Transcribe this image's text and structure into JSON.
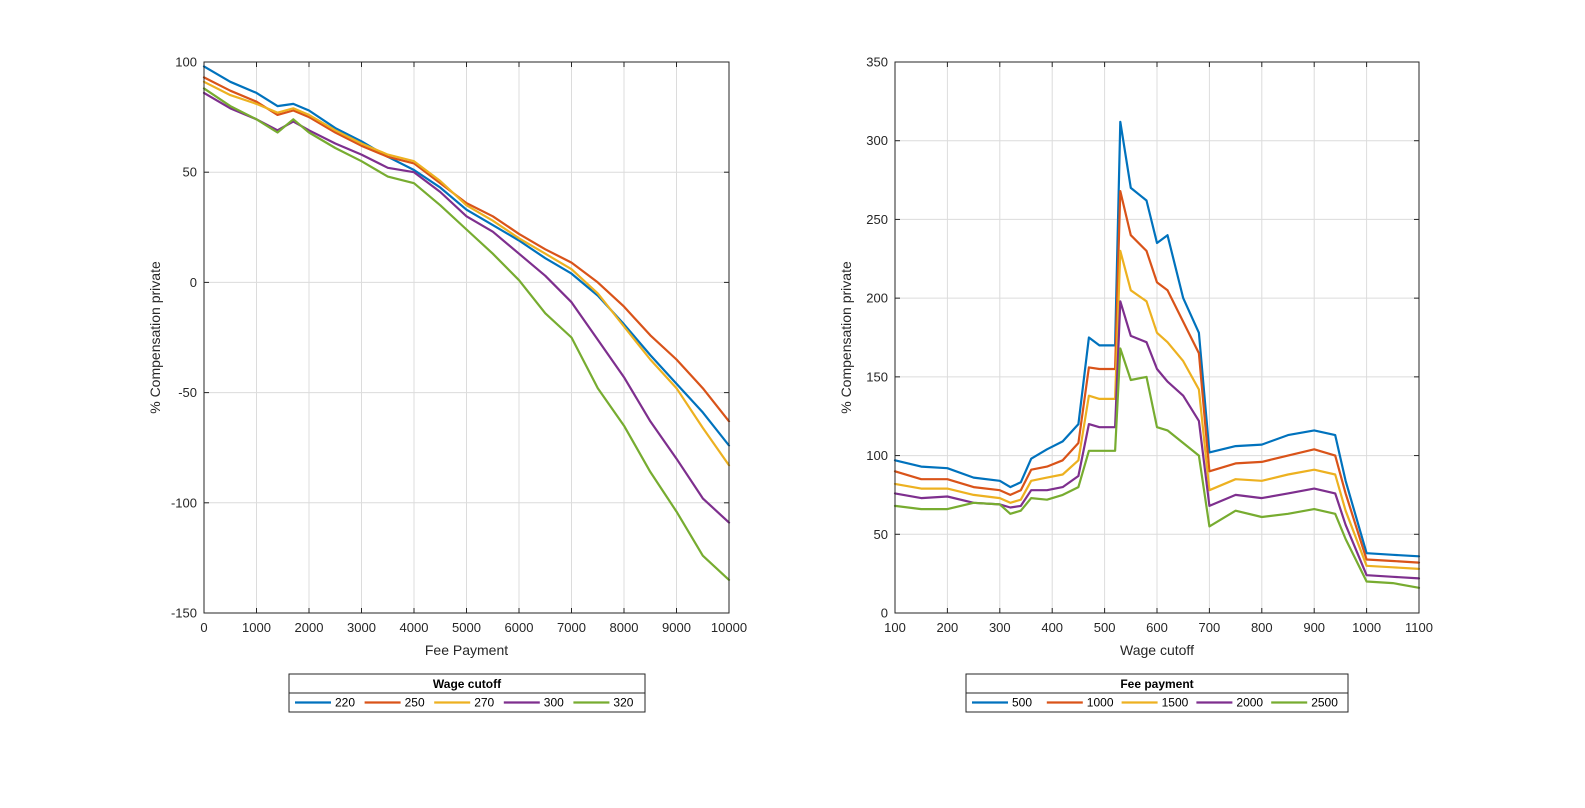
{
  "chart_data": [
    {
      "type": "line",
      "xlabel": "Fee Payment",
      "ylabel": "% Compensation private",
      "xlim": [
        0,
        10000
      ],
      "ylim": [
        -150,
        100
      ],
      "xticks": [
        0,
        1000,
        2000,
        3000,
        4000,
        5000,
        6000,
        7000,
        8000,
        9000,
        10000
      ],
      "yticks": [
        -150,
        -100,
        -50,
        0,
        50,
        100
      ],
      "grid": true,
      "legend": {
        "title": "Wage cutoff",
        "placement": "below",
        "orientation": "horizontal"
      },
      "series": [
        {
          "name": "220",
          "color": "#0072BD",
          "x": [
            0,
            500,
            1000,
            1400,
            1700,
            2000,
            2500,
            3000,
            3500,
            4000,
            4500,
            5000,
            5500,
            6000,
            6500,
            7000,
            7500,
            8000,
            8500,
            9000,
            9500,
            10000
          ],
          "y": [
            98,
            91,
            86,
            80,
            81,
            78,
            70,
            64,
            57,
            51,
            43,
            33,
            26,
            19,
            11,
            4,
            -6,
            -19,
            -33,
            -46,
            -59,
            -74
          ]
        },
        {
          "name": "250",
          "color": "#D95319",
          "x": [
            0,
            500,
            1000,
            1400,
            1700,
            2000,
            2500,
            3000,
            3500,
            4000,
            4500,
            5000,
            5500,
            6000,
            6500,
            7000,
            7500,
            8000,
            8500,
            9000,
            9500,
            10000
          ],
          "y": [
            93,
            87,
            82,
            76,
            78,
            75,
            68,
            62,
            57,
            54,
            45,
            36,
            30,
            22,
            15,
            9,
            0,
            -11,
            -24,
            -35,
            -48,
            -63
          ]
        },
        {
          "name": "270",
          "color": "#EDB120",
          "x": [
            0,
            500,
            1000,
            1400,
            1700,
            2000,
            2500,
            3000,
            3500,
            4000,
            4500,
            5000,
            5500,
            6000,
            6500,
            7000,
            7500,
            8000,
            8500,
            9000,
            9500,
            10000
          ],
          "y": [
            91,
            85,
            81,
            77,
            79,
            76,
            69,
            63,
            58,
            55,
            46,
            35,
            28,
            20,
            13,
            6,
            -5,
            -20,
            -35,
            -48,
            -66,
            -83
          ]
        },
        {
          "name": "300",
          "color": "#7E2F8E",
          "x": [
            0,
            500,
            1000,
            1400,
            1700,
            2000,
            2500,
            3000,
            3500,
            4000,
            4500,
            5000,
            5500,
            6000,
            6500,
            7000,
            7500,
            8000,
            8500,
            9000,
            9500,
            10000
          ],
          "y": [
            86,
            79,
            74,
            69,
            73,
            69,
            63,
            58,
            52,
            50,
            41,
            30,
            23,
            13,
            3,
            -9,
            -26,
            -43,
            -63,
            -80,
            -98,
            -109
          ]
        },
        {
          "name": "320",
          "color": "#77AC30",
          "x": [
            0,
            500,
            1000,
            1400,
            1700,
            2000,
            2500,
            3000,
            3500,
            4000,
            4500,
            5000,
            5500,
            6000,
            6500,
            7000,
            7500,
            8000,
            8500,
            9000,
            9500,
            10000
          ],
          "y": [
            88,
            80,
            74,
            68,
            74,
            68,
            61,
            55,
            48,
            45,
            35,
            24,
            13,
            1,
            -14,
            -25,
            -48,
            -65,
            -86,
            -104,
            -124,
            -135
          ]
        }
      ]
    },
    {
      "type": "line",
      "xlabel": "Wage cutoff",
      "ylabel": "% Compensation private",
      "xlim": [
        100,
        1100
      ],
      "ylim": [
        0,
        350
      ],
      "xticks": [
        100,
        200,
        300,
        400,
        500,
        600,
        700,
        800,
        900,
        1000,
        1100
      ],
      "yticks": [
        0,
        50,
        100,
        150,
        200,
        250,
        300,
        350
      ],
      "grid": true,
      "legend": {
        "title": "Fee payment",
        "placement": "below",
        "orientation": "horizontal"
      },
      "series": [
        {
          "name": "500",
          "color": "#0072BD",
          "x": [
            100,
            150,
            200,
            250,
            300,
            320,
            340,
            360,
            390,
            420,
            450,
            470,
            490,
            520,
            530,
            550,
            580,
            600,
            620,
            650,
            680,
            700,
            750,
            800,
            850,
            900,
            940,
            960,
            1000,
            1050,
            1100
          ],
          "y": [
            97,
            93,
            92,
            86,
            84,
            80,
            83,
            98,
            104,
            109,
            120,
            175,
            170,
            170,
            312,
            270,
            262,
            235,
            240,
            200,
            178,
            102,
            106,
            107,
            113,
            116,
            113,
            84,
            38,
            37,
            36
          ]
        },
        {
          "name": "1000",
          "color": "#D95319",
          "x": [
            100,
            150,
            200,
            250,
            300,
            320,
            340,
            360,
            390,
            420,
            450,
            470,
            490,
            520,
            530,
            550,
            580,
            600,
            620,
            650,
            680,
            700,
            750,
            800,
            850,
            900,
            940,
            960,
            1000,
            1050,
            1100
          ],
          "y": [
            90,
            85,
            85,
            80,
            78,
            75,
            78,
            91,
            93,
            97,
            108,
            156,
            155,
            155,
            268,
            240,
            230,
            210,
            205,
            185,
            165,
            90,
            95,
            96,
            100,
            104,
            100,
            76,
            34,
            33,
            32
          ]
        },
        {
          "name": "1500",
          "color": "#EDB120",
          "x": [
            100,
            150,
            200,
            250,
            300,
            320,
            340,
            360,
            390,
            420,
            450,
            470,
            490,
            520,
            530,
            550,
            580,
            600,
            620,
            650,
            680,
            700,
            750,
            800,
            850,
            900,
            940,
            960,
            1000,
            1050,
            1100
          ],
          "y": [
            82,
            79,
            79,
            75,
            73,
            70,
            72,
            84,
            86,
            88,
            97,
            138,
            136,
            136,
            230,
            205,
            198,
            178,
            172,
            160,
            142,
            78,
            85,
            84,
            88,
            91,
            88,
            65,
            30,
            29,
            28
          ]
        },
        {
          "name": "2000",
          "color": "#7E2F8E",
          "x": [
            100,
            150,
            200,
            250,
            300,
            320,
            340,
            360,
            390,
            420,
            450,
            470,
            490,
            520,
            530,
            550,
            580,
            600,
            620,
            650,
            680,
            700,
            750,
            800,
            850,
            900,
            940,
            960,
            1000,
            1050,
            1100
          ],
          "y": [
            76,
            73,
            74,
            70,
            69,
            67,
            68,
            78,
            78,
            80,
            87,
            120,
            118,
            118,
            198,
            176,
            172,
            155,
            147,
            138,
            122,
            68,
            75,
            73,
            76,
            79,
            76,
            56,
            24,
            23,
            22
          ]
        },
        {
          "name": "2500",
          "color": "#77AC30",
          "x": [
            100,
            150,
            200,
            250,
            300,
            320,
            340,
            360,
            390,
            420,
            450,
            470,
            490,
            520,
            530,
            550,
            580,
            600,
            620,
            650,
            680,
            700,
            750,
            800,
            850,
            900,
            940,
            960,
            1000,
            1050,
            1100
          ],
          "y": [
            68,
            66,
            66,
            70,
            69,
            63,
            65,
            73,
            72,
            75,
            80,
            103,
            103,
            103,
            168,
            148,
            150,
            118,
            116,
            108,
            100,
            55,
            65,
            61,
            63,
            66,
            63,
            47,
            20,
            19,
            16
          ]
        }
      ]
    }
  ]
}
